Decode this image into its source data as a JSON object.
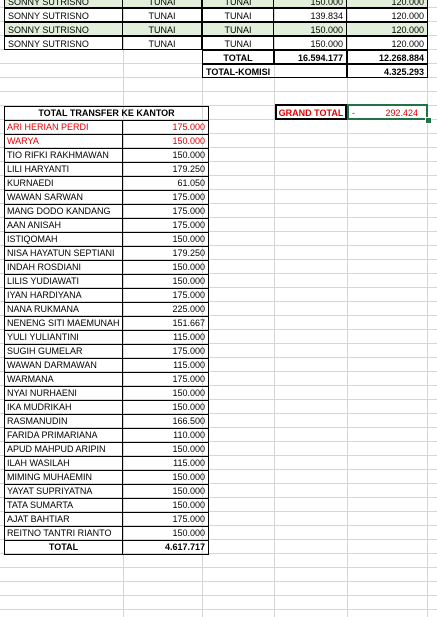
{
  "top_rows": [
    {
      "name": "SONNY SUTRISNO",
      "pay1": "TUNAI",
      "pay2": "TUNAI",
      "v1": "150.000",
      "v2": "120.000",
      "green": true
    },
    {
      "name": "SONNY SUTRISNO",
      "pay1": "TUNAI",
      "pay2": "TUNAI",
      "v1": "139.834",
      "v2": "120.000",
      "green": false
    },
    {
      "name": "SONNY SUTRISNO",
      "pay1": "TUNAI",
      "pay2": "TUNAI",
      "v1": "150.000",
      "v2": "120.000",
      "green": true
    },
    {
      "name": "SONNY SUTRISNO",
      "pay1": "TUNAI",
      "pay2": "TUNAI",
      "v1": "150.000",
      "v2": "120.000",
      "green": false
    }
  ],
  "totals": {
    "total_label": "TOTAL",
    "total_v1": "16.594.177",
    "total_v2": "12.268.884",
    "komisi_label": "TOTAL-KOMISI",
    "komisi_value": "4.325.293"
  },
  "grand_total": {
    "label": "GRAND TOTAL",
    "dash": "-",
    "value": "292.424"
  },
  "transfer": {
    "header": "TOTAL TRANSFER KE KANTOR",
    "rows": [
      {
        "name": "ARI HERIAN PERDI",
        "value": "175.000",
        "red": true
      },
      {
        "name": "WARYA",
        "value": "150.000",
        "red": true
      },
      {
        "name": "TIO RIFKI RAKHMAWAN",
        "value": "150.000"
      },
      {
        "name": "LILI HARYANTI",
        "value": "179.250"
      },
      {
        "name": "KURNAEDI",
        "value": "61.050"
      },
      {
        "name": "WAWAN SARWAN",
        "value": "175.000"
      },
      {
        "name": "MANG DODO KANDANG",
        "value": "175.000"
      },
      {
        "name": "AAN ANISAH",
        "value": "175.000"
      },
      {
        "name": "ISTIQOMAH",
        "value": "150.000"
      },
      {
        "name": "NISA HAYATUN SEPTIANI",
        "value": "179.250"
      },
      {
        "name": "INDAH ROSDIANI",
        "value": "150.000"
      },
      {
        "name": "LILIS YUDIAWATI",
        "value": "150.000"
      },
      {
        "name": "IYAN HARDIYANA",
        "value": "175.000"
      },
      {
        "name": "NANA RUKMANA",
        "value": "225.000"
      },
      {
        "name": "NENENG SITI MAEMUNAH",
        "value": "151.667"
      },
      {
        "name": "YULI YULIANTINI",
        "value": "115.000"
      },
      {
        "name": "SUGIH GUMELAR",
        "value": "175.000"
      },
      {
        "name": "WAWAN DARMAWAN",
        "value": "115.000"
      },
      {
        "name": "WARMANA",
        "value": "175.000"
      },
      {
        "name": "NYAI NURHAENI",
        "value": "150.000"
      },
      {
        "name": "IKA MUDRIKAH",
        "value": "150.000"
      },
      {
        "name": "RASMANUDIN",
        "value": "166.500"
      },
      {
        "name": "FARIDA PRIMARIANA",
        "value": "110.000"
      },
      {
        "name": "APUD MAHPUD ARIPIN",
        "value": "150.000"
      },
      {
        "name": "ILAH WASILAH",
        "value": "115.000"
      },
      {
        "name": "MIMING MUHAEMIN",
        "value": "150.000"
      },
      {
        "name": "YAYAT SUPRIYATNA",
        "value": "150.000"
      },
      {
        "name": "TATA SUMARTA",
        "value": "150.000"
      },
      {
        "name": "AJAT BAHTIAR",
        "value": "175.000"
      },
      {
        "name": "REITNO TANTRI RIANTO",
        "value": "150.000"
      }
    ],
    "total_label": "TOTAL",
    "total_value": "4.617.717"
  },
  "colors": {
    "red": "#e00000",
    "green_fill": "#e2efda",
    "selection": "#217346"
  }
}
